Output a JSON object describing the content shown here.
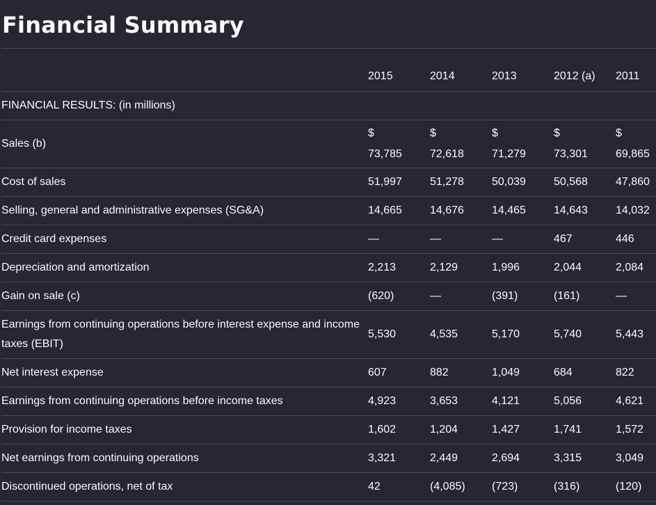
{
  "title": "Financial Summary",
  "columns": [
    "2015",
    "2014",
    "2013",
    "2012 (a)",
    "2011"
  ],
  "section_label": "FINANCIAL RESULTS: (in millions)",
  "currency_symbol": "$",
  "rows": [
    {
      "label": "Sales (b)",
      "currency": true,
      "values": [
        "73,785",
        "72,618",
        "71,279",
        "73,301",
        "69,865"
      ]
    },
    {
      "label": "Cost of sales",
      "values": [
        "51,997",
        "51,278",
        "50,039",
        "50,568",
        "47,860"
      ]
    },
    {
      "label": "Selling, general and administrative expenses (SG&A)",
      "values": [
        "14,665",
        "14,676",
        "14,465",
        "14,643",
        "14,032"
      ]
    },
    {
      "label": "Credit card expenses",
      "values": [
        "—",
        "—",
        "—",
        "467",
        "446"
      ]
    },
    {
      "label": "Depreciation and amortization",
      "values": [
        "2,213",
        "2,129",
        "1,996",
        "2,044",
        "2,084"
      ]
    },
    {
      "label": "Gain on sale (c)",
      "values": [
        "(620)",
        "—",
        "(391)",
        "(161)",
        "—"
      ]
    },
    {
      "label": "Earnings from continuing operations before interest expense and income taxes (EBIT)",
      "values": [
        "5,530",
        "4,535",
        "5,170",
        "5,740",
        "5,443"
      ]
    },
    {
      "label": "Net interest expense",
      "values": [
        "607",
        "882",
        "1,049",
        "684",
        "822"
      ]
    },
    {
      "label": "Earnings from continuing operations before income taxes",
      "values": [
        "4,923",
        "3,653",
        "4,121",
        "5,056",
        "4,621"
      ]
    },
    {
      "label": "Provision for income taxes",
      "values": [
        "1,602",
        "1,204",
        "1,427",
        "1,741",
        "1,572"
      ]
    },
    {
      "label": "Net earnings from continuing operations",
      "values": [
        "3,321",
        "2,449",
        "2,694",
        "3,315",
        "3,049"
      ]
    },
    {
      "label": "Discontinued operations, net of tax",
      "values": [
        "42",
        "(4,085)",
        "(723)",
        "(316)",
        "(120)"
      ]
    }
  ]
}
